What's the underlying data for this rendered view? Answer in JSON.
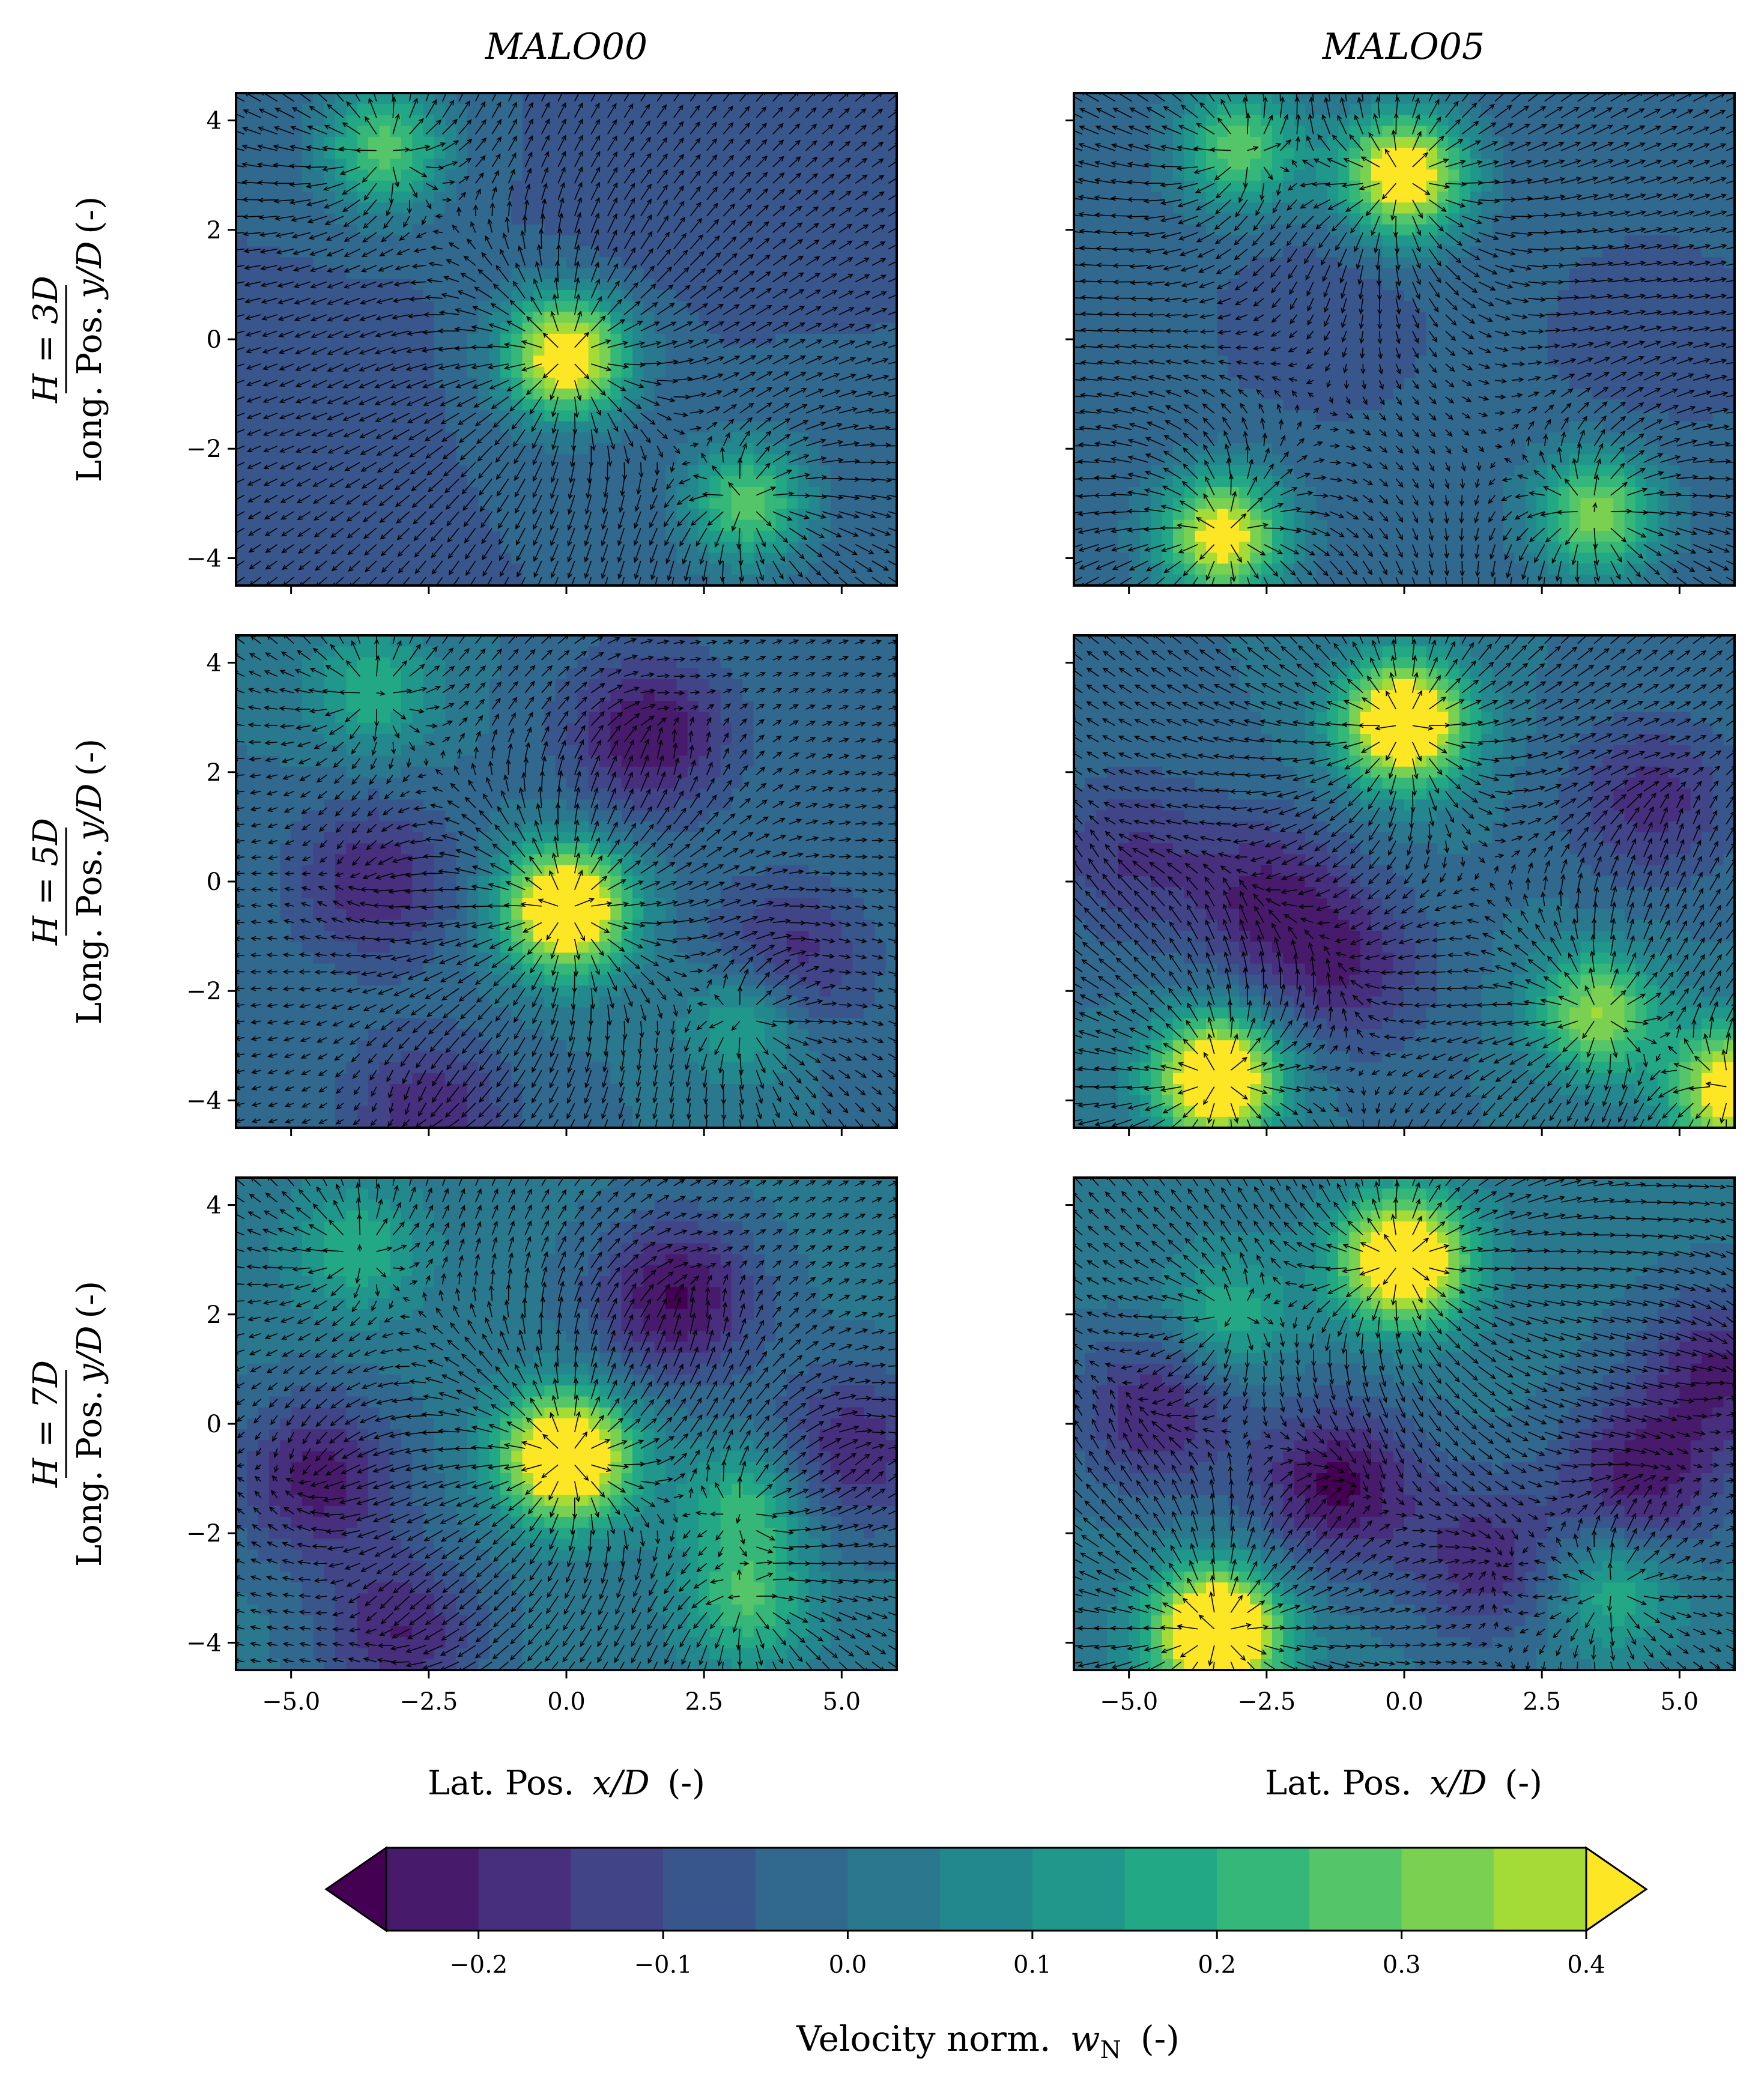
{
  "chart_data": {
    "type": "heatmap",
    "layout": "3x2 grid of filled-contour plots with quiver overlay, shared colorbar",
    "columns": [
      "MALO00",
      "MALO05"
    ],
    "rows": [
      {
        "label": "H = 3D",
        "eq_main": "H = 3D"
      },
      {
        "label": "H = 5D",
        "eq_main": "H = 5D"
      },
      {
        "label": "H = 7D",
        "eq_main": "H = 7D"
      }
    ],
    "ylabel": "Long. Pos. y/D (-)",
    "ylabel_text": "Long. Pos.",
    "ylabel_frac": "y/D",
    "ylabel_unit": "(-)",
    "xlabel": "Lat. Pos. x/D (-)",
    "xlabel_text": "Lat. Pos.",
    "xlabel_frac": "x/D",
    "xlabel_unit": "(-)",
    "xlim": [
      -6,
      6
    ],
    "ylim": [
      -4.5,
      4.5
    ],
    "xticks": [
      -5.0,
      -2.5,
      0.0,
      2.5,
      5.0
    ],
    "xtick_labels": [
      "−5.0",
      "−2.5",
      "0.0",
      "2.5",
      "5.0"
    ],
    "yticks": [
      4,
      2,
      0,
      -2,
      -4
    ],
    "ytick_labels": [
      "4",
      "2",
      "0",
      "−2",
      "−4"
    ],
    "colorbar": {
      "label": "Velocity norm.",
      "symbol": "w",
      "subscript": "N",
      "unit": "(-)",
      "vmin": -0.25,
      "vmax": 0.4,
      "levels": [
        -0.25,
        -0.2,
        -0.15,
        -0.1,
        -0.05,
        0.0,
        0.05,
        0.1,
        0.15,
        0.2,
        0.25,
        0.3,
        0.35,
        0.4
      ],
      "ticks": [
        -0.2,
        -0.1,
        0.0,
        0.1,
        0.2,
        0.3,
        0.4
      ],
      "tick_labels": [
        "−0.2",
        "−0.1",
        "0.0",
        "0.1",
        "0.2",
        "0.3",
        "0.4"
      ],
      "extend": "both",
      "colormap": "viridis",
      "colors": [
        "#440154",
        "#481a6c",
        "#472f7d",
        "#414487",
        "#39568c",
        "#31688e",
        "#2a788e",
        "#23888e",
        "#1f988b",
        "#22a884",
        "#35b779",
        "#54c568",
        "#7ad151",
        "#a5db36",
        "#d2e21b",
        "#fde725"
      ]
    },
    "panels": [
      {
        "row": 0,
        "col": 0,
        "background": -0.05,
        "sources": [
          {
            "x": 0.0,
            "y": -0.3,
            "w": 0.55
          },
          {
            "x": -3.3,
            "y": 3.5,
            "w": 0.33
          },
          {
            "x": 3.3,
            "y": -3.0,
            "w": 0.33
          }
        ],
        "troughs": [
          {
            "x": 1.5,
            "y": 2.5,
            "w": -0.05
          },
          {
            "x": -4.2,
            "y": -1.0,
            "w": -0.04
          }
        ]
      },
      {
        "row": 0,
        "col": 1,
        "background": -0.04,
        "sources": [
          {
            "x": 0.0,
            "y": 3.0,
            "w": 0.55
          },
          {
            "x": -3.3,
            "y": -3.6,
            "w": 0.5
          },
          {
            "x": -3.0,
            "y": 3.5,
            "w": 0.33
          },
          {
            "x": 3.5,
            "y": -3.2,
            "w": 0.38
          }
        ],
        "troughs": [
          {
            "x": -1.5,
            "y": 0.5,
            "w": -0.06
          },
          {
            "x": 4.5,
            "y": 0.0,
            "w": -0.05
          }
        ]
      },
      {
        "row": 1,
        "col": 0,
        "background": 0.0,
        "sources": [
          {
            "x": 0.0,
            "y": -0.5,
            "w": 0.6
          },
          {
            "x": -3.5,
            "y": 3.5,
            "w": 0.2
          },
          {
            "x": 3.3,
            "y": -2.5,
            "w": 0.22
          }
        ],
        "troughs": [
          {
            "x": 1.5,
            "y": 2.7,
            "w": -0.25
          },
          {
            "x": -3.5,
            "y": 0.0,
            "w": -0.2
          },
          {
            "x": 4.0,
            "y": -1.5,
            "w": -0.2
          },
          {
            "x": -2.5,
            "y": -4.3,
            "w": -0.2
          }
        ]
      },
      {
        "row": 1,
        "col": 1,
        "background": 0.0,
        "sources": [
          {
            "x": 0.0,
            "y": 2.9,
            "w": 0.6
          },
          {
            "x": -3.4,
            "y": -3.6,
            "w": 0.6
          },
          {
            "x": 3.5,
            "y": -2.4,
            "w": 0.35
          },
          {
            "x": 6.0,
            "y": -3.8,
            "w": 0.5
          }
        ],
        "troughs": [
          {
            "x": -2.5,
            "y": -0.3,
            "w": -0.2
          },
          {
            "x": 4.5,
            "y": 1.5,
            "w": -0.18
          },
          {
            "x": -1.0,
            "y": -1.6,
            "w": -0.18
          },
          {
            "x": -5.0,
            "y": 0.5,
            "w": -0.15
          }
        ]
      },
      {
        "row": 2,
        "col": 0,
        "background": 0.02,
        "sources": [
          {
            "x": 0.0,
            "y": -0.6,
            "w": 0.62
          },
          {
            "x": -3.8,
            "y": 3.2,
            "w": 0.18
          },
          {
            "x": 3.3,
            "y": -1.5,
            "w": 0.22
          },
          {
            "x": 3.3,
            "y": -3.3,
            "w": 0.22
          }
        ],
        "troughs": [
          {
            "x": 2.0,
            "y": 2.3,
            "w": -0.28
          },
          {
            "x": -4.5,
            "y": -1.0,
            "w": -0.25
          },
          {
            "x": 5.2,
            "y": -0.5,
            "w": -0.22
          },
          {
            "x": -3.0,
            "y": -3.8,
            "w": -0.22
          }
        ]
      },
      {
        "row": 2,
        "col": 1,
        "background": 0.02,
        "sources": [
          {
            "x": 0.0,
            "y": 3.0,
            "w": 0.6
          },
          {
            "x": -3.4,
            "y": -3.8,
            "w": 0.65
          },
          {
            "x": -3.2,
            "y": 2.0,
            "w": 0.18
          },
          {
            "x": 3.8,
            "y": -3.0,
            "w": 0.2
          }
        ],
        "troughs": [
          {
            "x": -1.2,
            "y": -1.1,
            "w": -0.28
          },
          {
            "x": 4.3,
            "y": -1.0,
            "w": -0.25
          },
          {
            "x": -4.5,
            "y": 0.2,
            "w": -0.22
          },
          {
            "x": 1.5,
            "y": -2.5,
            "w": -0.2
          },
          {
            "x": 5.8,
            "y": 1.0,
            "w": -0.22
          }
        ]
      }
    ]
  }
}
